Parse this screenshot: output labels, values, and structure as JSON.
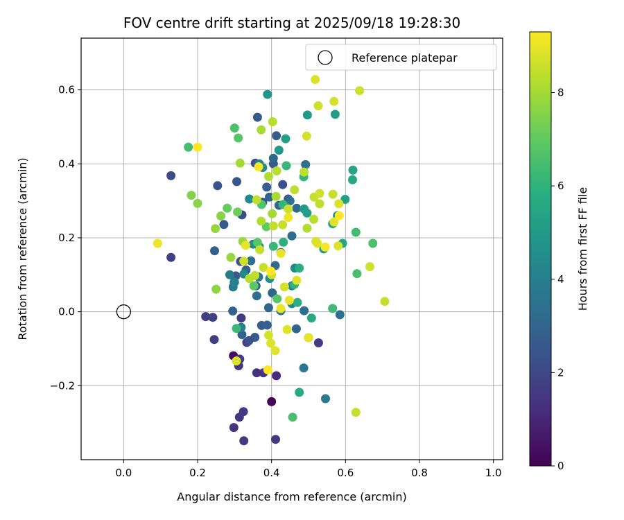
{
  "chart_data": {
    "type": "scatter",
    "title": "FOV centre drift starting at 2025/09/18 19:28:30",
    "xlabel": "Angular distance from reference (arcmin)",
    "ylabel": "Rotation from reference (arcmin)",
    "xlim": [
      -0.115,
      1.025
    ],
    "ylim": [
      -0.4,
      0.74
    ],
    "xticks": [
      0.0,
      0.2,
      0.4,
      0.6,
      0.8,
      1.0
    ],
    "xtick_labels": [
      "0.0",
      "0.2",
      "0.4",
      "0.6",
      "0.8",
      "1.0"
    ],
    "yticks": [
      -0.2,
      0.0,
      0.2,
      0.4,
      0.6
    ],
    "ytick_labels": [
      "−0.2",
      "0.0",
      "0.2",
      "0.4",
      "0.6"
    ],
    "grid": true,
    "legend": {
      "position": "top-right",
      "entries": [
        "Reference platepar"
      ]
    },
    "reference_point": {
      "x": 0.0,
      "y": 0.0,
      "label": "Reference platepar"
    },
    "colorbar": {
      "label": "Hours from first FF file",
      "min": 0,
      "max": 9.3,
      "ticks": [
        0,
        2,
        4,
        6,
        8
      ],
      "tick_labels": [
        "0",
        "2",
        "4",
        "6",
        "8"
      ],
      "colormap": "viridis"
    },
    "points": [
      [
        0.4,
        -0.243,
        0.1
      ],
      [
        0.297,
        -0.119,
        0.3
      ],
      [
        0.413,
        -0.173,
        1.2
      ],
      [
        0.378,
        -0.165,
        1.4
      ],
      [
        0.324,
        -0.27,
        1.6
      ],
      [
        0.313,
        -0.285,
        1.5
      ],
      [
        0.298,
        -0.313,
        1.4
      ],
      [
        0.325,
        -0.349,
        1.5
      ],
      [
        0.411,
        -0.345,
        1.6
      ],
      [
        0.36,
        -0.165,
        1.3
      ],
      [
        0.311,
        -0.146,
        1.5
      ],
      [
        0.314,
        -0.128,
        1.6
      ],
      [
        0.527,
        -0.084,
        1.6
      ],
      [
        0.333,
        -0.083,
        1.8
      ],
      [
        0.245,
        -0.075,
        1.7
      ],
      [
        0.222,
        -0.013,
        1.7
      ],
      [
        0.241,
        -0.015,
        1.8
      ],
      [
        0.318,
        -0.017,
        1.6
      ],
      [
        0.128,
        0.147,
        1.8
      ],
      [
        0.128,
        0.368,
        2.1
      ],
      [
        0.32,
        0.262,
        2.2
      ],
      [
        0.254,
        0.341,
        2.4
      ],
      [
        0.306,
        0.352,
        2.5
      ],
      [
        0.356,
        0.402,
        2.3
      ],
      [
        0.362,
        0.526,
        2.6
      ],
      [
        0.413,
        0.476,
        2.7
      ],
      [
        0.405,
        0.4,
        2.6
      ],
      [
        0.387,
        0.337,
        2.8
      ],
      [
        0.43,
        0.344,
        2.3
      ],
      [
        0.376,
        0.296,
        2.4
      ],
      [
        0.445,
        0.305,
        2.6
      ],
      [
        0.271,
        0.236,
        2.7
      ],
      [
        0.246,
        0.165,
        2.8
      ],
      [
        0.316,
        0.136,
        2.4
      ],
      [
        0.303,
        0.097,
        2.5
      ],
      [
        0.299,
        0.08,
        2.4
      ],
      [
        0.331,
        0.113,
        2.9
      ],
      [
        0.358,
        0.07,
        3.1
      ],
      [
        0.295,
        0.002,
        2.9
      ],
      [
        0.373,
        -0.037,
        2.6
      ],
      [
        0.355,
        -0.069,
        2.7
      ],
      [
        0.32,
        -0.062,
        3.0
      ],
      [
        0.339,
        -0.078,
        2.3
      ],
      [
        0.467,
        -0.046,
        3.0
      ],
      [
        0.388,
        -0.036,
        2.8
      ],
      [
        0.392,
        0.011,
        3.0
      ],
      [
        0.402,
        0.051,
        3.1
      ],
      [
        0.36,
        0.043,
        3.3
      ],
      [
        0.41,
        0.125,
        3.2
      ],
      [
        0.425,
        0.16,
        3.0
      ],
      [
        0.455,
        0.205,
        3.3
      ],
      [
        0.394,
        0.31,
        3.0
      ],
      [
        0.42,
        0.288,
        3.2
      ],
      [
        0.45,
        0.3,
        3.4
      ],
      [
        0.468,
        0.28,
        3.2
      ],
      [
        0.492,
        0.398,
        3.5
      ],
      [
        0.405,
        0.415,
        3.1
      ],
      [
        0.585,
        -0.008,
        3.4
      ],
      [
        0.488,
        0.003,
        3.3
      ],
      [
        0.5,
        -0.07,
        3.4
      ],
      [
        0.487,
        -0.152,
        3.6
      ],
      [
        0.546,
        -0.235,
        3.8
      ],
      [
        0.296,
        0.067,
        3.8
      ],
      [
        0.318,
        -0.042,
        4.0
      ],
      [
        0.3,
        0.08,
        4.0
      ],
      [
        0.325,
        0.102,
        4.2
      ],
      [
        0.287,
        0.1,
        3.9
      ],
      [
        0.365,
        0.094,
        3.7
      ],
      [
        0.344,
        0.138,
        3.5
      ],
      [
        0.425,
        0.003,
        3.6
      ],
      [
        0.463,
        0.118,
        4.4
      ],
      [
        0.455,
        0.07,
        4.4
      ],
      [
        0.395,
        0.09,
        4.5
      ],
      [
        0.455,
        0.022,
        4.2
      ],
      [
        0.35,
        0.183,
        4.5
      ],
      [
        0.367,
        0.176,
        4.6
      ],
      [
        0.34,
        0.305,
        4.4
      ],
      [
        0.367,
        0.4,
        4.2
      ],
      [
        0.376,
        0.39,
        4.5
      ],
      [
        0.389,
        0.588,
        4.8
      ],
      [
        0.42,
        0.437,
        4.9
      ],
      [
        0.438,
        0.468,
        5.2
      ],
      [
        0.497,
        0.532,
        5.0
      ],
      [
        0.572,
        0.534,
        5.1
      ],
      [
        0.488,
        0.278,
        5.0
      ],
      [
        0.496,
        0.267,
        5.2
      ],
      [
        0.578,
        0.26,
        5.1
      ],
      [
        0.599,
        0.304,
        5.2
      ],
      [
        0.62,
        0.383,
        5.4
      ],
      [
        0.619,
        0.357,
        5.5
      ],
      [
        0.565,
        0.238,
        5.4
      ],
      [
        0.592,
        0.185,
        5.5
      ],
      [
        0.541,
        0.17,
        5.4
      ],
      [
        0.508,
        -0.017,
        5.6
      ],
      [
        0.475,
        -0.218,
        5.6
      ],
      [
        0.47,
        0.025,
        5.8
      ],
      [
        0.475,
        0.118,
        5.8
      ],
      [
        0.462,
        0.074,
        6.0
      ],
      [
        0.432,
        0.188,
        5.9
      ],
      [
        0.405,
        0.177,
        6.2
      ],
      [
        0.431,
        0.29,
        6.1
      ],
      [
        0.44,
        0.395,
        6.2
      ],
      [
        0.487,
        0.365,
        6.1
      ],
      [
        0.565,
        0.009,
        6.3
      ],
      [
        0.631,
        0.103,
        6.5
      ],
      [
        0.628,
        0.215,
        6.4
      ],
      [
        0.674,
        0.185,
        6.6
      ],
      [
        0.457,
        -0.285,
        6.5
      ],
      [
        0.305,
        -0.045,
        6.2
      ],
      [
        0.3,
        0.497,
        6.6
      ],
      [
        0.175,
        0.445,
        6.4
      ],
      [
        0.31,
        0.47,
        6.8
      ],
      [
        0.362,
        0.187,
        6.8
      ],
      [
        0.373,
        0.29,
        6.7
      ],
      [
        0.352,
        0.07,
        6.9
      ],
      [
        0.415,
        0.035,
        6.8
      ],
      [
        0.386,
        0.23,
        7.0
      ],
      [
        0.28,
        0.28,
        7.1
      ],
      [
        0.308,
        0.27,
        7.2
      ],
      [
        0.183,
        0.315,
        7.5
      ],
      [
        0.2,
        0.293,
        7.6
      ],
      [
        0.263,
        0.259,
        7.6
      ],
      [
        0.248,
        0.225,
        7.8
      ],
      [
        0.25,
        0.061,
        7.7
      ],
      [
        0.29,
        0.147,
        7.8
      ],
      [
        0.322,
        0.19,
        7.9
      ],
      [
        0.33,
        0.18,
        8.0
      ],
      [
        0.315,
        0.402,
        8.0
      ],
      [
        0.372,
        0.492,
        8.1
      ],
      [
        0.403,
        0.514,
        8.3
      ],
      [
        0.392,
        0.366,
        8.2
      ],
      [
        0.414,
        0.381,
        8.3
      ],
      [
        0.36,
        0.303,
        8.4
      ],
      [
        0.372,
        0.245,
        8.2
      ],
      [
        0.402,
        0.265,
        8.0
      ],
      [
        0.412,
        0.312,
        8.1
      ],
      [
        0.405,
        0.232,
        8.4
      ],
      [
        0.43,
        0.235,
        8.5
      ],
      [
        0.445,
        0.278,
        8.6
      ],
      [
        0.462,
        0.33,
        8.4
      ],
      [
        0.488,
        0.378,
        8.4
      ],
      [
        0.496,
        0.226,
        8.2
      ],
      [
        0.514,
        0.25,
        8.3
      ],
      [
        0.515,
        0.31,
        8.5
      ],
      [
        0.53,
        0.292,
        8.4
      ],
      [
        0.53,
        0.32,
        8.6
      ],
      [
        0.566,
        0.318,
        8.5
      ],
      [
        0.569,
        0.569,
        8.7
      ],
      [
        0.526,
        0.557,
        8.6
      ],
      [
        0.518,
        0.628,
        8.8
      ],
      [
        0.638,
        0.598,
        8.6
      ],
      [
        0.495,
        0.475,
        8.7
      ],
      [
        0.582,
        0.292,
        8.8
      ],
      [
        0.569,
        0.243,
        8.9
      ],
      [
        0.524,
        0.185,
        8.9
      ],
      [
        0.52,
        0.19,
        8.8
      ],
      [
        0.58,
        0.178,
        8.8
      ],
      [
        0.666,
        0.122,
        8.6
      ],
      [
        0.706,
        0.028,
        8.5
      ],
      [
        0.628,
        -0.272,
        8.5
      ],
      [
        0.468,
        0.085,
        8.9
      ],
      [
        0.435,
        0.067,
        8.7
      ],
      [
        0.4,
        0.1,
        8.6
      ],
      [
        0.378,
        0.12,
        8.5
      ],
      [
        0.355,
        0.098,
        8.4
      ],
      [
        0.34,
        0.09,
        8.3
      ],
      [
        0.325,
        0.137,
        8.6
      ],
      [
        0.368,
        0.168,
        8.5
      ],
      [
        0.398,
        -0.085,
        8.8
      ],
      [
        0.392,
        -0.063,
        8.7
      ],
      [
        0.41,
        -0.105,
        8.9
      ],
      [
        0.442,
        -0.048,
        8.9
      ],
      [
        0.305,
        -0.133,
        8.8
      ],
      [
        0.448,
        0.031,
        9.0
      ],
      [
        0.425,
        0.009,
        9.1
      ],
      [
        0.5,
        -0.07,
        9.0
      ],
      [
        0.33,
        0.18,
        9.0
      ],
      [
        0.425,
        0.158,
        9.0
      ],
      [
        0.445,
        0.255,
        9.1
      ],
      [
        0.545,
        0.175,
        9.2
      ],
      [
        0.583,
        0.26,
        9.3
      ],
      [
        0.365,
        0.392,
        9.2
      ],
      [
        0.2,
        0.445,
        9.3
      ],
      [
        0.092,
        0.185,
        9.1
      ],
      [
        0.398,
        0.11,
        9.3
      ],
      [
        0.39,
        -0.157,
        9.3
      ]
    ]
  }
}
